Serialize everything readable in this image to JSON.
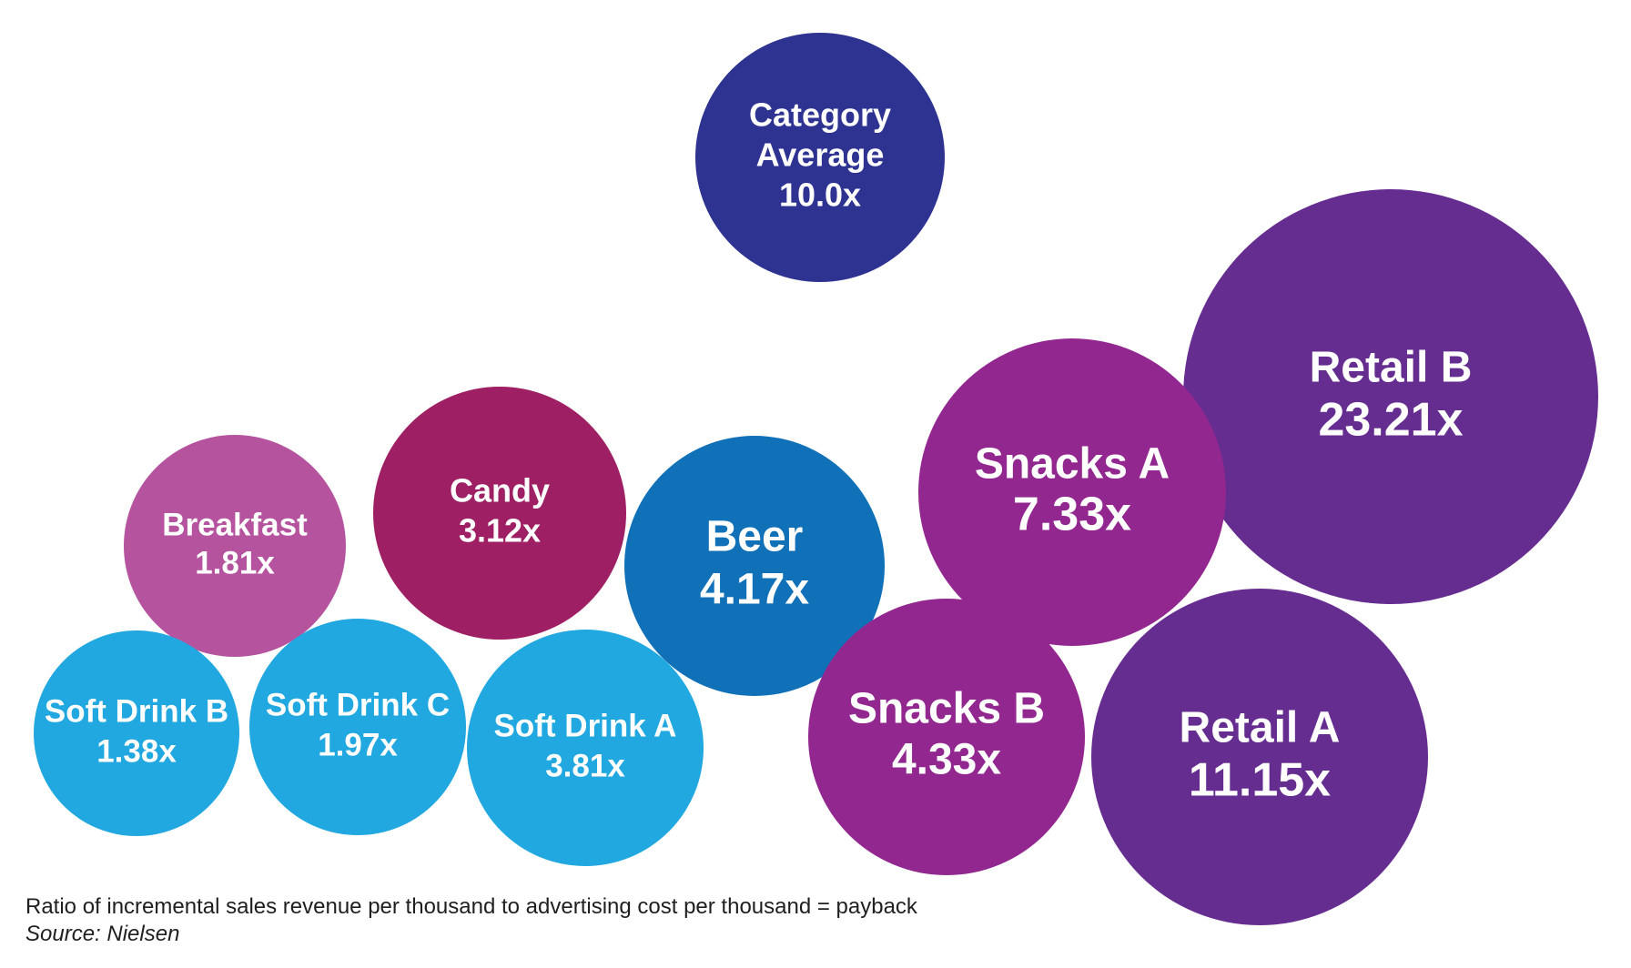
{
  "chart_data": {
    "type": "bubble",
    "unit": "x",
    "items": [
      {
        "label_lines": [
          "Category",
          "Average"
        ],
        "value": "10.0x",
        "numeric_value": 10.0,
        "color": "#2E3391"
      },
      {
        "label_lines": [
          "Retail B"
        ],
        "value": "23.21x",
        "numeric_value": 23.21,
        "color": "#662D91"
      },
      {
        "label_lines": [
          "Snacks A"
        ],
        "value": "7.33x",
        "numeric_value": 7.33,
        "color": "#92278F"
      },
      {
        "label_lines": [
          "Candy"
        ],
        "value": "3.12x",
        "numeric_value": 3.12,
        "color": "#9E1F63"
      },
      {
        "label_lines": [
          "Breakfast"
        ],
        "value": "1.81x",
        "numeric_value": 1.81,
        "color": "#B5539E"
      },
      {
        "label_lines": [
          "Beer"
        ],
        "value": "4.17x",
        "numeric_value": 4.17,
        "color": "#1071B9"
      },
      {
        "label_lines": [
          "Snacks B"
        ],
        "value": "4.33x",
        "numeric_value": 4.33,
        "color": "#92278F"
      },
      {
        "label_lines": [
          "Retail A"
        ],
        "value": "11.15x",
        "numeric_value": 11.15,
        "color": "#662D91"
      },
      {
        "label_lines": [
          "Soft Drink B"
        ],
        "value": "1.38x",
        "numeric_value": 1.38,
        "color": "#22A8E0"
      },
      {
        "label_lines": [
          "Soft Drink C"
        ],
        "value": "1.97x",
        "numeric_value": 1.97,
        "color": "#22A8E0"
      },
      {
        "label_lines": [
          "Soft Drink A"
        ],
        "value": "3.81x",
        "numeric_value": 3.81,
        "color": "#22A8E0"
      }
    ]
  },
  "footer": {
    "note": "Ratio of incremental sales revenue per thousand to advertising cost per thousand = payback",
    "source": "Source: Nielsen"
  }
}
